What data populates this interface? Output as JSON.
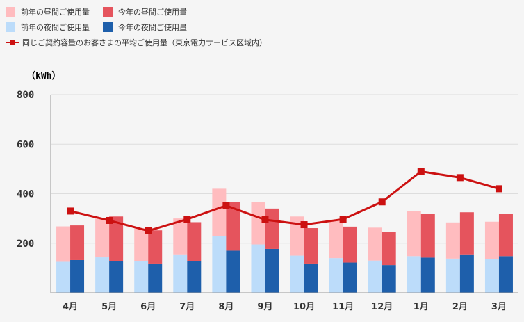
{
  "legend": {
    "prev_day": "前年の昼間ご使用量",
    "curr_day": "今年の昼間ご使用量",
    "prev_night": "前年の夜間ご使用量",
    "curr_night": "今年の夜間ご使用量",
    "avg": "同じご契約容量のお客さまの平均ご使用量（東京電力サービス区域内）"
  },
  "colors": {
    "prev_day": "#ffbcbf",
    "curr_day": "#e5545d",
    "prev_night": "#bcdcfa",
    "curr_night": "#1e5fab",
    "avg": "#cc1111",
    "grid": "#dddddd"
  },
  "chart_data": {
    "type": "bar",
    "unit_label": "（kWh）",
    "ylim": [
      0,
      800
    ],
    "yticks": [
      200,
      400,
      600,
      800
    ],
    "categories": [
      "4月",
      "5月",
      "6月",
      "7月",
      "8月",
      "9月",
      "10月",
      "11月",
      "12月",
      "1月",
      "2月",
      "3月"
    ],
    "series": [
      {
        "name": "前年の夜間ご使用量",
        "stack": "prev",
        "values": [
          125,
          143,
          127,
          155,
          228,
          195,
          150,
          140,
          130,
          148,
          138,
          135
        ]
      },
      {
        "name": "前年の昼間ご使用量",
        "stack": "prev",
        "values": [
          143,
          160,
          133,
          145,
          192,
          170,
          158,
          153,
          133,
          183,
          146,
          152
        ]
      },
      {
        "name": "今年の夜間ご使用量",
        "stack": "curr",
        "values": [
          132,
          128,
          118,
          128,
          170,
          177,
          118,
          122,
          112,
          142,
          155,
          148
        ]
      },
      {
        "name": "今年の昼間ご使用量",
        "stack": "curr",
        "values": [
          140,
          180,
          134,
          157,
          195,
          163,
          143,
          145,
          135,
          178,
          170,
          172
        ]
      },
      {
        "name": "同じご契約容量のお客さまの平均ご使用量（東京電力サービス区域内）",
        "type": "line",
        "values": [
          330,
          292,
          250,
          297,
          352,
          295,
          275,
          297,
          367,
          490,
          465,
          420
        ]
      }
    ]
  }
}
